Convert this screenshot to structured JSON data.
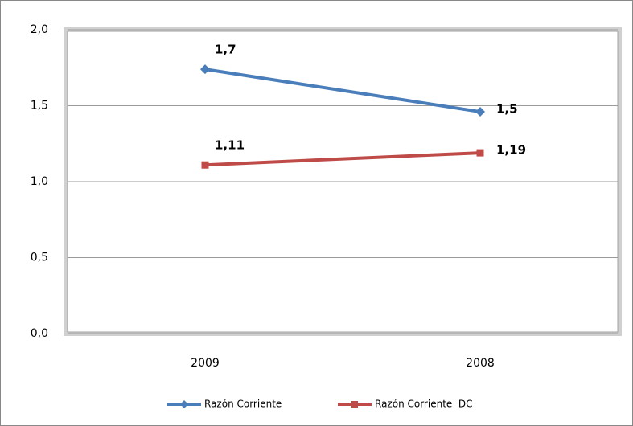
{
  "chart_data": {
    "type": "line",
    "categories": [
      "2009",
      "2008"
    ],
    "series": [
      {
        "name": "Razón Corriente",
        "color": "#4a7ebb",
        "marker": "diamond",
        "values": [
          1.74,
          1.46
        ],
        "value_labels": [
          "1,7",
          "1,5"
        ]
      },
      {
        "name": "Razón Corriente  DC",
        "color": "#be4b48",
        "marker": "square",
        "values": [
          1.11,
          1.19
        ],
        "value_labels": [
          "1,11",
          "1,19"
        ]
      }
    ],
    "ylim": [
      0,
      2
    ],
    "yticks": [
      {
        "value": 0,
        "label": "0,0"
      },
      {
        "value": 0.5,
        "label": "0,5"
      },
      {
        "value": 1,
        "label": "1,0"
      },
      {
        "value": 1.5,
        "label": "1,5"
      },
      {
        "value": 2,
        "label": "2,0"
      }
    ],
    "grid": true,
    "legend": "bottom"
  }
}
